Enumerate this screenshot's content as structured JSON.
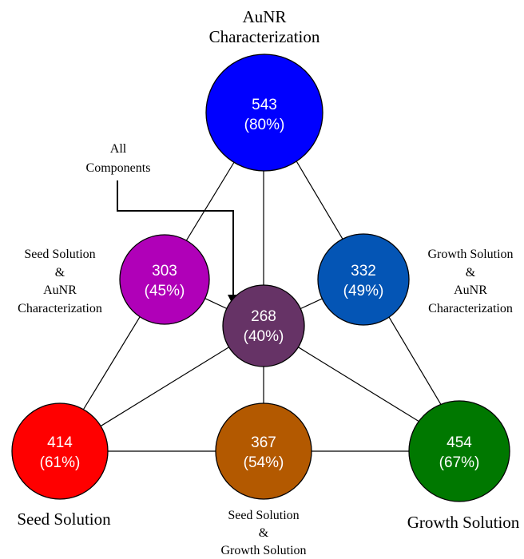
{
  "nodes": {
    "aunr": {
      "value": "543",
      "percent": "(80%)",
      "color": "#0000ff",
      "label": [
        "AuNR",
        "Characterization"
      ]
    },
    "seed_aunr": {
      "value": "303",
      "percent": "(45%)",
      "color": "#b000b8",
      "label": [
        "Seed Solution",
        "&",
        "AuNR",
        "Characterization"
      ]
    },
    "growth_aunr": {
      "value": "332",
      "percent": "(49%)",
      "color": "#0455b5",
      "label": [
        "Growth Solution",
        "&",
        "AuNR",
        "Characterization"
      ]
    },
    "all": {
      "value": "268",
      "percent": "(40%)",
      "color": "#663366",
      "label": [
        "All",
        "Components"
      ]
    },
    "seed": {
      "value": "414",
      "percent": "(61%)",
      "color": "#ff0000",
      "label": [
        "Seed Solution"
      ]
    },
    "seed_growth": {
      "value": "367",
      "percent": "(54%)",
      "color": "#b35900",
      "label": [
        "Seed Solution",
        "&",
        "Growth Solution"
      ]
    },
    "growth": {
      "value": "454",
      "percent": "(67%)",
      "color": "#007800",
      "label": [
        "Growth Solution"
      ]
    }
  }
}
